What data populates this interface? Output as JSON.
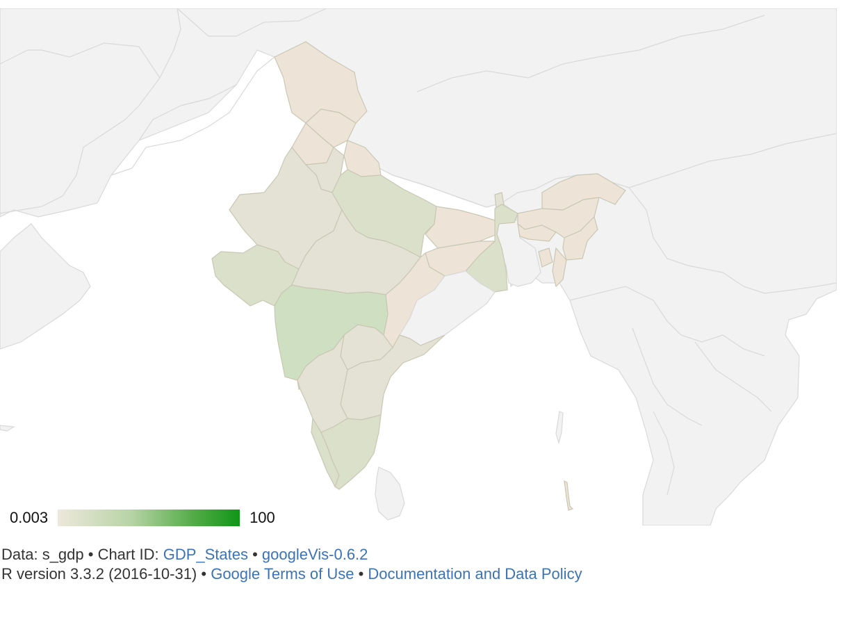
{
  "map": {
    "legend": {
      "min": "0.003",
      "max": "100",
      "color_min": "#ede8dc",
      "color_max": "#109618"
    },
    "colors": {
      "water": "#ffffff",
      "land": "#f2f2f2",
      "border": "#d9d9d9",
      "state_low": "#ede4d7",
      "state_mid": "#e4e2d4",
      "state_higher": "#dbe0cb",
      "state_high": "#cfdfc2"
    }
  },
  "footer": {
    "line1": {
      "data_prefix": "Data: s_gdp • Chart ID: ",
      "chart_id": "GDP_States",
      "sep": " • ",
      "googlevis": "googleVis-0.6.2"
    },
    "line2": {
      "r_version": "R version 3.3.2 (2016-10-31)",
      "sep1": " • ",
      "terms": "Google Terms of Use",
      "sep2": " • ",
      "docs": "Documentation and Data Policy"
    }
  }
}
